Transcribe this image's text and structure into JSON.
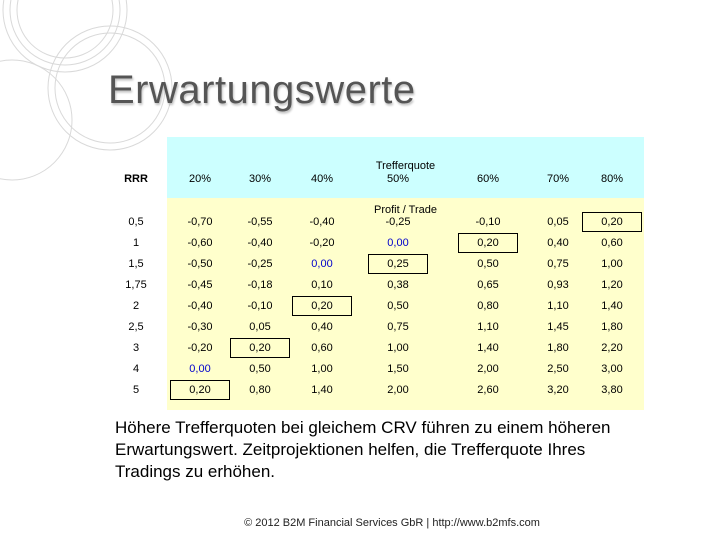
{
  "title": "Erwartungswerte",
  "table": {
    "group_label": "Trefferquote",
    "row_header": "RRR",
    "sub_label": "Profit / Trade",
    "columns": [
      "20%",
      "30%",
      "40%",
      "50%",
      "60%",
      "70%",
      "80%"
    ],
    "rows": [
      {
        "rrr": "0,5",
        "values": [
          "-0,70",
          "-0,55",
          "-0,40",
          "-0,25",
          "-0,10",
          "0,05",
          "0,20"
        ]
      },
      {
        "rrr": "1",
        "values": [
          "-0,60",
          "-0,40",
          "-0,20",
          "0,00",
          "0,20",
          "0,40",
          "0,60"
        ]
      },
      {
        "rrr": "1,5",
        "values": [
          "-0,50",
          "-0,25",
          "0,00",
          "0,25",
          "0,50",
          "0,75",
          "1,00"
        ]
      },
      {
        "rrr": "1,75",
        "values": [
          "-0,45",
          "-0,18",
          "0,10",
          "0,38",
          "0,65",
          "0,93",
          "1,20"
        ]
      },
      {
        "rrr": "2",
        "values": [
          "-0,40",
          "-0,10",
          "0,20",
          "0,50",
          "0,80",
          "1,10",
          "1,40"
        ]
      },
      {
        "rrr": "2,5",
        "values": [
          "-0,30",
          "0,05",
          "0,40",
          "0,75",
          "1,10",
          "1,45",
          "1,80"
        ]
      },
      {
        "rrr": "3",
        "values": [
          "-0,20",
          "0,20",
          "0,60",
          "1,00",
          "1,40",
          "1,80",
          "2,20"
        ]
      },
      {
        "rrr": "4",
        "values": [
          "0,00",
          "0,50",
          "1,00",
          "1,50",
          "2,00",
          "2,50",
          "3,00"
        ]
      },
      {
        "rrr": "5",
        "values": [
          "0,20",
          "0,80",
          "1,40",
          "2,00",
          "2,60",
          "3,20",
          "3,80"
        ]
      }
    ],
    "highlight_colors": {
      "zero": "#0000cc"
    }
  },
  "caption": "Höhere Trefferquoten bei gleichem CRV führen zu einem höheren Erwartungswert. Zeitprojektionen helfen, die Trefferquote Ihres Tradings zu erhöhen.",
  "footer": "© 2012 B2M Financial Services GbR | http://www.b2mfs.com"
}
